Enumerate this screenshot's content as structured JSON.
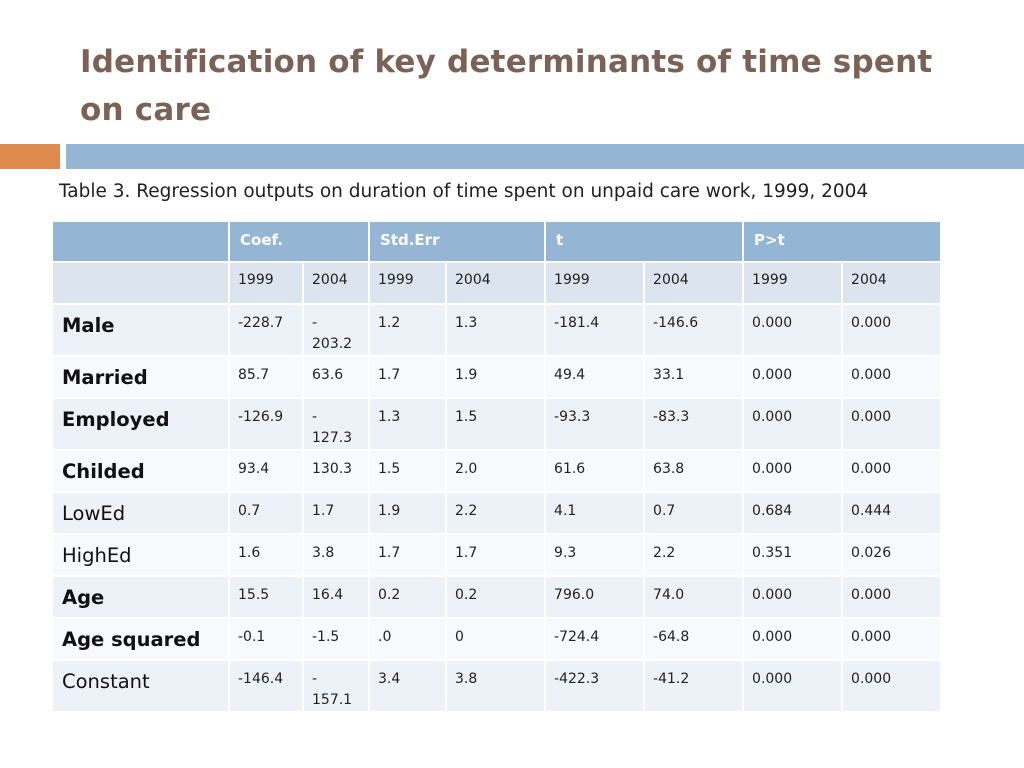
{
  "title": "Identification of key determinants of time spent on care",
  "caption": "Table 3. Regression outputs on duration of time spent on unpaid care work, 1999, 2004",
  "table": {
    "groups": [
      "Coef.",
      "Std.Err",
      "t",
      "P>t"
    ],
    "years": [
      "1999",
      "2004",
      "1999",
      "2004",
      "1999",
      "2004",
      "1999",
      "2004"
    ],
    "rows": [
      {
        "label": "Male",
        "values": [
          "-228.7",
          "-\n203.2",
          "1.2",
          "1.3",
          "-181.4",
          "-146.6",
          "0.000",
          "0.000"
        ]
      },
      {
        "label": "Married",
        "values": [
          "85.7",
          "63.6",
          "1.7",
          "1.9",
          "49.4",
          "33.1",
          "0.000",
          "0.000"
        ]
      },
      {
        "label": "Employed",
        "values": [
          "-126.9",
          "-\n127.3",
          "1.3",
          "1.5",
          "-93.3",
          "-83.3",
          "0.000",
          "0.000"
        ]
      },
      {
        "label": "Childed",
        "values": [
          "93.4",
          "130.3",
          "1.5",
          "2.0",
          "61.6",
          "63.8",
          "0.000",
          "0.000"
        ]
      },
      {
        "label": "LowEd",
        "values": [
          "0.7",
          "1.7",
          "1.9",
          "2.2",
          "4.1",
          "0.7",
          "0.684",
          "0.444"
        ]
      },
      {
        "label": "HighEd",
        "values": [
          "1.6",
          "3.8",
          "1.7",
          "1.7",
          "9.3",
          "2.2",
          "0.351",
          "0.026"
        ]
      },
      {
        "label": "Age",
        "values": [
          "15.5",
          "16.4",
          "0.2",
          "0.2",
          "796.0",
          "74.0",
          "0.000",
          "0.000"
        ]
      },
      {
        "label": "Age squared",
        "values": [
          "-0.1",
          "-1.5",
          ".0",
          "0",
          "-724.4",
          "-64.8",
          "0.000",
          "0.000"
        ]
      },
      {
        "label": "Constant",
        "values": [
          "-146.4",
          "-\n157.1",
          "3.4",
          "3.8",
          "-422.3",
          "-41.2",
          "0.000",
          "0.000"
        ]
      }
    ]
  },
  "colors": {
    "title": "#7a6256",
    "accent_orange": "#dd8a4c",
    "accent_blue": "#95b5d4",
    "header_fill": "#95b5d4",
    "year_row_fill": "#dbe4ef",
    "row_fill_odd": "#edf2f8",
    "row_fill_even": "#f7f9fc"
  }
}
